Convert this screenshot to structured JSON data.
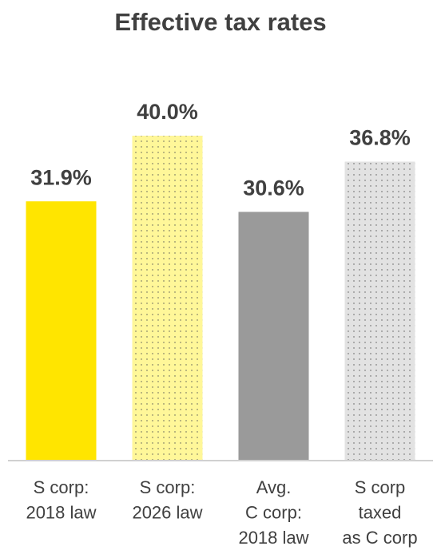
{
  "chart_data": {
    "type": "bar",
    "title": "Effective tax rates",
    "categories": [
      [
        "S corp:",
        "2018 law"
      ],
      [
        "S corp:",
        "2026 law"
      ],
      [
        "Avg.",
        "C corp:",
        "2018 law"
      ],
      [
        "S corp",
        "taxed",
        "as C corp"
      ]
    ],
    "values": [
      31.9,
      40.0,
      30.6,
      36.8
    ],
    "value_labels": [
      "31.9%",
      "40.0%",
      "30.6%",
      "36.8%"
    ],
    "colors": [
      "#ffe500",
      "#fff799",
      "#9a9a9a",
      "#e2e2e2"
    ],
    "dotted": [
      false,
      true,
      false,
      true
    ]
  }
}
